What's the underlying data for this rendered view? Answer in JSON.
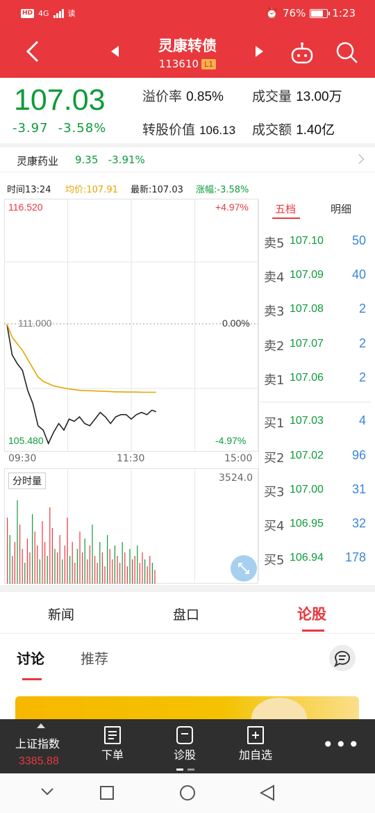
{
  "status_bar": {
    "signal": "4G",
    "extra": "读",
    "battery": "76%",
    "time": "1:23"
  },
  "header": {
    "title": "灵康转债",
    "code": "113610",
    "level": "L1"
  },
  "quote": {
    "price": "107.03",
    "change": "-3.97",
    "change_pct": "-3.58%",
    "premium_label": "溢价率",
    "premium_value": "0.85%",
    "volume_label": "成交量",
    "volume_value": "13.00万",
    "conv_value_label": "转股价值",
    "conv_value": "106.13",
    "amount_label": "成交额",
    "amount_value": "1.40亿"
  },
  "related": {
    "name": "灵康药业",
    "price": "9.35",
    "change_pct": "-3.91%"
  },
  "info_line": {
    "time": "时间13:24",
    "avg": "均价:107.91",
    "latest": "最新:107.03",
    "pct": "涨幅:-3.58%"
  },
  "chart_labels": {
    "high": "116.520",
    "mid": "111.000",
    "low": "105.480",
    "high_pct": "+4.97%",
    "mid_pct": "0.00%",
    "low_pct": "-4.97%",
    "t0": "09:30",
    "t1": "11:30",
    "t2": "15:00",
    "vol_label": "分时量",
    "vol_max": "3524.0"
  },
  "chart_data": {
    "type": "line",
    "x": [
      "09:30",
      "09:35",
      "09:40",
      "09:45",
      "09:50",
      "09:55",
      "10:00",
      "10:05",
      "10:10",
      "10:15",
      "10:20",
      "10:25",
      "10:30",
      "10:35",
      "10:40",
      "10:45",
      "10:50",
      "10:55",
      "11:00",
      "11:05",
      "11:10",
      "11:15",
      "11:20",
      "11:25",
      "11:30",
      "13:05",
      "13:10",
      "13:15",
      "13:20",
      "13:24"
    ],
    "series": [
      {
        "values": [
          110.98,
          109.6,
          109.2,
          108.9,
          108.0,
          107.4,
          106.4,
          106.2,
          105.6,
          106.1,
          106.5,
          106.2,
          106.7,
          106.6,
          106.8,
          106.5,
          106.4,
          106.7,
          107.0,
          106.8,
          106.5,
          106.8,
          106.9,
          106.9,
          106.7,
          106.9,
          107.0,
          106.9,
          107.1,
          107.03
        ]
      },
      {
        "values": [
          110.98,
          110.4,
          110.1,
          109.8,
          109.4,
          109.0,
          108.6,
          108.4,
          108.3,
          108.2,
          108.15,
          108.1,
          108.06,
          108.03,
          108.0,
          107.99,
          107.98,
          107.97,
          107.96,
          107.95,
          107.94,
          107.93,
          107.93,
          107.92,
          107.92,
          107.92,
          107.91,
          107.91,
          107.91,
          107.91
        ]
      }
    ],
    "ylim": [
      105.48,
      116.52
    ],
    "x_ticks": [
      "09:30",
      "11:30",
      "15:00"
    ]
  },
  "order_book": {
    "tab_active": "五档",
    "tab_other": "明细",
    "asks": [
      {
        "side": "卖5",
        "price": "107.10",
        "qty": "50"
      },
      {
        "side": "卖4",
        "price": "107.09",
        "qty": "40"
      },
      {
        "side": "卖3",
        "price": "107.08",
        "qty": "2"
      },
      {
        "side": "卖2",
        "price": "107.07",
        "qty": "2"
      },
      {
        "side": "卖1",
        "price": "107.06",
        "qty": "2"
      }
    ],
    "bids": [
      {
        "side": "买1",
        "price": "107.03",
        "qty": "4"
      },
      {
        "side": "买2",
        "price": "107.02",
        "qty": "96"
      },
      {
        "side": "买3",
        "price": "107.00",
        "qty": "31"
      },
      {
        "side": "买4",
        "price": "106.95",
        "qty": "32"
      },
      {
        "side": "买5",
        "price": "106.94",
        "qty": "178"
      }
    ]
  },
  "tabs": [
    "新闻",
    "盘口",
    "论股"
  ],
  "subtabs": [
    "讨论",
    "推荐"
  ],
  "bottom_bar": {
    "index_name": "上证指数",
    "index_value": "3385.88",
    "order": "下单",
    "diagnose": "诊股",
    "add_watch": "加自选"
  },
  "colors": {
    "brand_red": "#e8383d",
    "down_green": "#0d9b3a",
    "avg_line": "#e6a500",
    "qty_blue": "#3a87d9"
  }
}
